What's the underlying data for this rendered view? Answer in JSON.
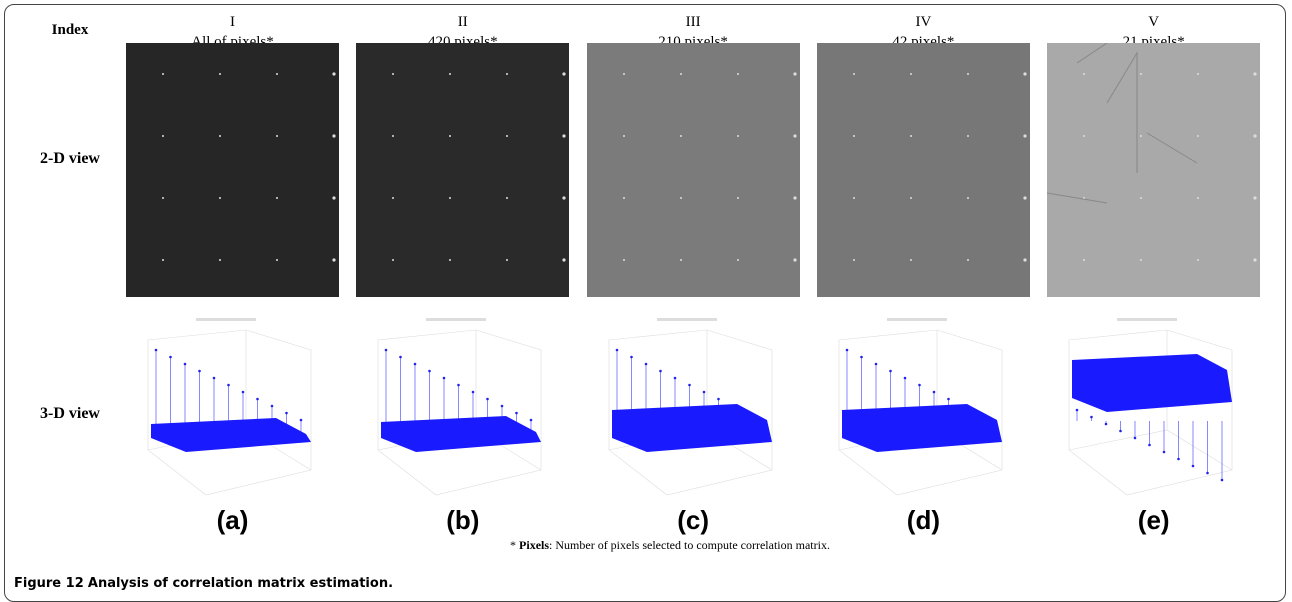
{
  "header": {
    "index_label": "Index"
  },
  "columns": [
    {
      "numeral": "I",
      "subtitle": "All of pixels*",
      "panel": "(a)"
    },
    {
      "numeral": "II",
      "subtitle": "420 pixels*",
      "panel": "(b)"
    },
    {
      "numeral": "III",
      "subtitle": "210 pixels*",
      "panel": "(c)"
    },
    {
      "numeral": "IV",
      "subtitle": "42 pixels*",
      "panel": "(d)"
    },
    {
      "numeral": "V",
      "subtitle": "21 pixels*",
      "panel": "(e)"
    }
  ],
  "rows": [
    "2-D view",
    "3-D view"
  ],
  "footnote": {
    "prefix": "* ",
    "bold": "Pixels",
    "rest": ": Number of pixels selected to compute correlation matrix."
  },
  "caption": {
    "label": "Figure 12",
    "text": "Analysis of correlation matrix estimation."
  }
}
